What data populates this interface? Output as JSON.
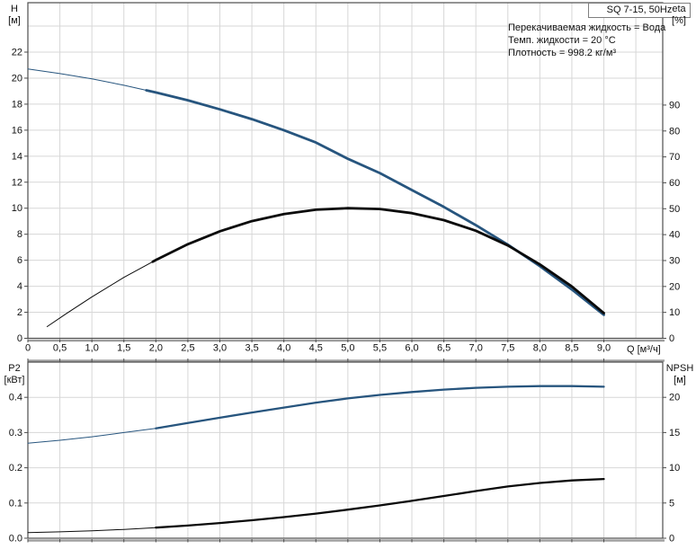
{
  "header": {
    "title_box": "SQ 7-15, 50Hz",
    "info_lines": [
      "Перекачиваемая жидкость = Вода",
      "Темп. жидкости = 20 °C",
      "Плотность = 998.2 кг/м³"
    ]
  },
  "colors": {
    "curve_blue": "#27557e",
    "curve_black": "#0b0b0b",
    "grid": "#d7d7d7",
    "frame": "#4d4d4d",
    "frame_heavy": "#9e9e9e",
    "text": "#111111",
    "title_box_border": "#7f7f7f"
  },
  "chart_data": [
    {
      "id": "hq_panel",
      "type": "line",
      "title": "SQ 7-15, 50Hz",
      "x_axis": {
        "label": "Q [м³/ч]",
        "min": 0,
        "max": 9.92,
        "tick_values": [
          0,
          0.5,
          1,
          1.5,
          2,
          2.5,
          3,
          3.5,
          4,
          4.5,
          5,
          5.5,
          6,
          6.5,
          7,
          7.5,
          8,
          8.5,
          9
        ],
        "tick_labels": [
          "0",
          "0,5",
          "1,0",
          "1,5",
          "2,0",
          "2,5",
          "3,0",
          "3,5",
          "4,0",
          "4,5",
          "5,0",
          "5,5",
          "6,0",
          "6,5",
          "7,0",
          "7,5",
          "8,0",
          "8,5",
          "9,0"
        ],
        "grid_values": [
          0.5,
          1,
          1.5,
          2,
          2.5,
          3,
          3.5,
          4,
          4.5,
          5,
          5.5,
          6,
          6.5,
          7,
          7.5,
          8,
          8.5,
          9,
          9.5
        ]
      },
      "y_left": {
        "label1": "H",
        "label2": "[м]",
        "min": 0,
        "max": 25.8,
        "tick_values": [
          0,
          2,
          4,
          6,
          8,
          10,
          12,
          14,
          16,
          18,
          20,
          22
        ],
        "tick_labels": [
          "0",
          "2",
          "4",
          "6",
          "8",
          "10",
          "12",
          "14",
          "16",
          "18",
          "20",
          "22"
        ],
        "grid_values": [
          2,
          4,
          6,
          8,
          10,
          12,
          14,
          16,
          18,
          20,
          22,
          24
        ]
      },
      "y_right": {
        "label1": "eta",
        "label2": "[%]",
        "min": 0,
        "max": 129.5,
        "tick_values": [
          0,
          10,
          20,
          30,
          40,
          50,
          60,
          70,
          80,
          90
        ],
        "tick_labels": [
          "0",
          "10",
          "20",
          "30",
          "40",
          "50",
          "60",
          "70",
          "80",
          "90"
        ]
      },
      "series": [
        {
          "name": "h",
          "axis": "left",
          "color_key": "curve_blue",
          "bold_from": 1.85,
          "points": [
            [
              0,
              20.7
            ],
            [
              0.5,
              20.35
            ],
            [
              1,
              19.95
            ],
            [
              1.5,
              19.45
            ],
            [
              2,
              18.9
            ],
            [
              2.5,
              18.3
            ],
            [
              3,
              17.6
            ],
            [
              3.5,
              16.85
            ],
            [
              4,
              16.0
            ],
            [
              4.5,
              15.05
            ],
            [
              5,
              13.8
            ],
            [
              5.5,
              12.7
            ],
            [
              6,
              11.4
            ],
            [
              6.5,
              10.1
            ],
            [
              7,
              8.7
            ],
            [
              7.5,
              7.2
            ],
            [
              8,
              5.55
            ],
            [
              8.5,
              3.75
            ],
            [
              9,
              1.8
            ]
          ]
        },
        {
          "name": "eta",
          "axis": "right",
          "color_key": "curve_black",
          "bold_from": 1.95,
          "points": [
            [
              0.3,
              4.5
            ],
            [
              0.6,
              9.5
            ],
            [
              1,
              16
            ],
            [
              1.5,
              23.5
            ],
            [
              2,
              30.2
            ],
            [
              2.5,
              36.3
            ],
            [
              3,
              41.3
            ],
            [
              3.5,
              45.2
            ],
            [
              4,
              47.9
            ],
            [
              4.5,
              49.6
            ],
            [
              5,
              50.2
            ],
            [
              5.5,
              49.9
            ],
            [
              6,
              48.3
            ],
            [
              6.5,
              45.6
            ],
            [
              7,
              41.5
            ],
            [
              7.5,
              35.8
            ],
            [
              8,
              28.5
            ],
            [
              8.5,
              20
            ],
            [
              9,
              9.7
            ]
          ]
        }
      ]
    },
    {
      "id": "p2_npsh_panel",
      "type": "line",
      "x_axis": {
        "label": "",
        "min": 0,
        "max": 9.92,
        "tick_values": [
          0,
          0.5,
          1,
          1.5,
          2,
          2.5,
          3,
          3.5,
          4,
          4.5,
          5,
          5.5,
          6,
          6.5,
          7,
          7.5,
          8,
          8.5,
          9
        ],
        "tick_labels": [],
        "grid_values": [
          0.5,
          1,
          1.5,
          2,
          2.5,
          3,
          3.5,
          4,
          4.5,
          5,
          5.5,
          6,
          6.5,
          7,
          7.5,
          8,
          8.5,
          9,
          9.5
        ]
      },
      "y_left": {
        "label1": "P2",
        "label2": "[кВт]",
        "min": 0,
        "max": 0.5,
        "tick_values": [
          0,
          0.1,
          0.2,
          0.3,
          0.4
        ],
        "tick_labels": [
          "0.0",
          "0.1",
          "0.2",
          "0.3",
          "0.4"
        ],
        "grid_values": [
          0.1,
          0.2,
          0.3,
          0.4
        ]
      },
      "y_right": {
        "label1": "NPSH",
        "label2": "[м]",
        "min": 0,
        "max": 25,
        "tick_values": [
          0,
          5,
          10,
          15,
          20
        ],
        "tick_labels": [
          "0",
          "5",
          "10",
          "15",
          "20"
        ]
      },
      "series": [
        {
          "name": "p2",
          "axis": "left",
          "color_key": "curve_blue",
          "bold_from": 2,
          "points": [
            [
              0,
              0.27
            ],
            [
              0.5,
              0.278
            ],
            [
              1,
              0.288
            ],
            [
              1.5,
              0.3
            ],
            [
              2,
              0.312
            ],
            [
              2.5,
              0.327
            ],
            [
              3,
              0.342
            ],
            [
              3.5,
              0.357
            ],
            [
              4,
              0.371
            ],
            [
              4.5,
              0.385
            ],
            [
              5,
              0.397
            ],
            [
              5.5,
              0.407
            ],
            [
              6,
              0.415
            ],
            [
              6.5,
              0.422
            ],
            [
              7,
              0.427
            ],
            [
              7.5,
              0.43
            ],
            [
              8,
              0.432
            ],
            [
              8.5,
              0.432
            ],
            [
              9,
              0.43
            ]
          ]
        },
        {
          "name": "npsh",
          "axis": "right",
          "color_key": "curve_black",
          "bold_from": 2,
          "points": [
            [
              0,
              0.8
            ],
            [
              0.5,
              0.9
            ],
            [
              1,
              1.05
            ],
            [
              1.5,
              1.25
            ],
            [
              2,
              1.5
            ],
            [
              2.5,
              1.8
            ],
            [
              3,
              2.15
            ],
            [
              3.5,
              2.55
            ],
            [
              4,
              3.0
            ],
            [
              4.5,
              3.5
            ],
            [
              5,
              4.05
            ],
            [
              5.5,
              4.65
            ],
            [
              6,
              5.3
            ],
            [
              6.5,
              6.0
            ],
            [
              7,
              6.7
            ],
            [
              7.5,
              7.35
            ],
            [
              8,
              7.85
            ],
            [
              8.5,
              8.2
            ],
            [
              9,
              8.4
            ]
          ]
        }
      ]
    }
  ]
}
